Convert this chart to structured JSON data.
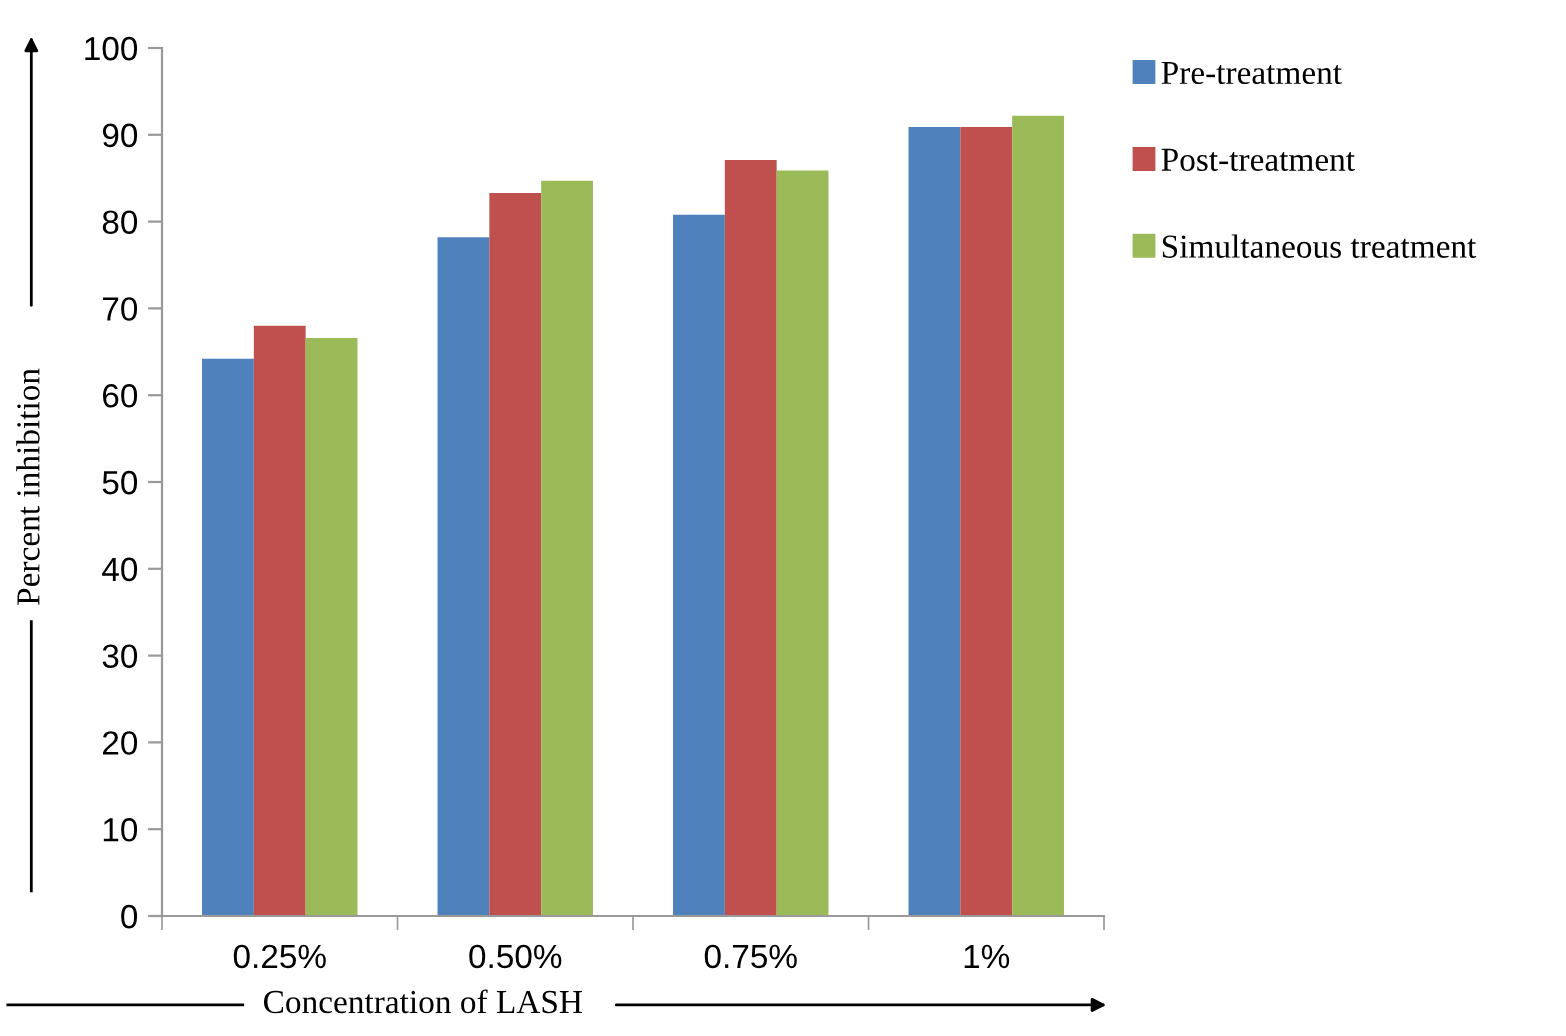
{
  "chart_data": {
    "type": "bar",
    "xlabel": "Concentration of LASH",
    "ylabel": "Percent inhibition",
    "categories": [
      "0.25%",
      "0.50%",
      "0.75%",
      "1%"
    ],
    "series": [
      {
        "name": "Pre-treatment",
        "color": "#4f81bd",
        "values": [
          64.2,
          78.2,
          80.8,
          90.9
        ]
      },
      {
        "name": "Post-treatment",
        "color": "#c0504d",
        "values": [
          68.0,
          83.3,
          87.1,
          90.9
        ]
      },
      {
        "name": "Simultaneous treatment",
        "color": "#9bbb59",
        "values": [
          66.6,
          84.7,
          85.9,
          92.2
        ]
      }
    ],
    "ylim": [
      0,
      100
    ],
    "yticks": [
      0,
      10,
      20,
      30,
      40,
      50,
      60,
      70,
      80,
      90,
      100
    ],
    "grid": false,
    "legend": "right"
  }
}
